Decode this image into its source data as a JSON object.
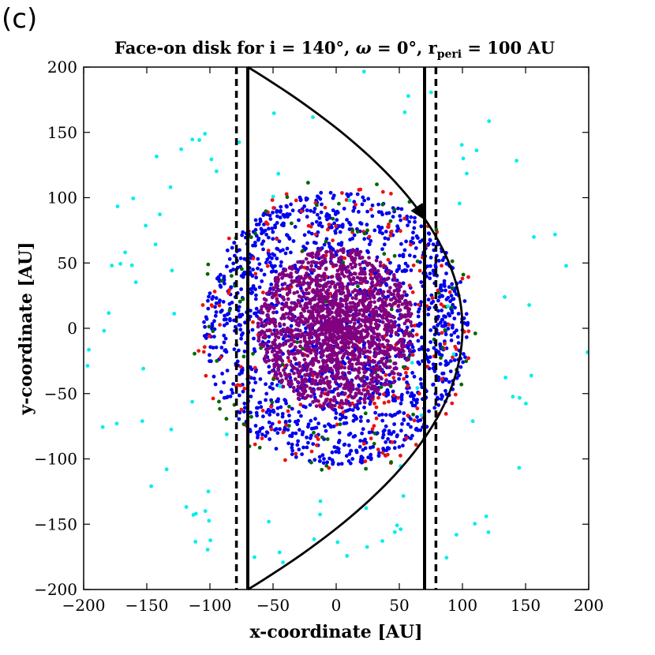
{
  "panel_label": "(c)",
  "chart_data": {
    "type": "scatter",
    "title": {
      "prefix": "Face-on disk for i = 140°, ",
      "omega": "ω",
      "middle": " = 0°, r",
      "subscript": "peri",
      "suffix": " = 100 AU"
    },
    "xlabel": "x-coordinate [AU]",
    "ylabel": "y-coordinate [AU]",
    "xlim": [
      -200,
      200
    ],
    "ylim": [
      -200,
      200
    ],
    "xticks": [
      -200,
      -150,
      -100,
      -50,
      0,
      50,
      100,
      150,
      200
    ],
    "yticks": [
      -200,
      -150,
      -100,
      -50,
      0,
      50,
      100,
      150,
      200
    ],
    "xtick_labels": [
      "−200",
      "−150",
      "−100",
      "−50",
      "0",
      "50",
      "100",
      "150",
      "200"
    ],
    "ytick_labels": [
      "−200",
      "−150",
      "−100",
      "−50",
      "0",
      "50",
      "100",
      "150",
      "200"
    ],
    "grid": false,
    "series": [
      {
        "name": "purple-core",
        "color": "#800080",
        "count": 1800,
        "radius_max": 62,
        "radius_exp": 0.7
      },
      {
        "name": "blue",
        "color": "#0000ee",
        "count": 1500,
        "radius_max": 105,
        "radius_exp": 0.42
      },
      {
        "name": "red",
        "color": "#ee1111",
        "count": 240,
        "radius_max": 112,
        "radius_exp": 0.45
      },
      {
        "name": "green",
        "color": "#006600",
        "count": 110,
        "radius_max": 115,
        "radius_exp": 0.45
      },
      {
        "name": "cyan",
        "color": "#00eeee",
        "count": 100,
        "radius_max": 200,
        "radius_exp": 0.25
      }
    ],
    "vertical_lines": [
      {
        "x": -70,
        "style": "solid",
        "color": "#000000"
      },
      {
        "x": 70,
        "style": "solid",
        "color": "#000000"
      },
      {
        "x": -79,
        "style": "dashed",
        "color": "#000000"
      },
      {
        "x": 79,
        "style": "dashed",
        "color": "#000000"
      }
    ],
    "orbit": {
      "r_peri": 100,
      "x_vertex": 100,
      "x_at_edges": -70,
      "y_range": [
        -200,
        200
      ],
      "arrow_at": [
        70,
        82
      ]
    }
  }
}
